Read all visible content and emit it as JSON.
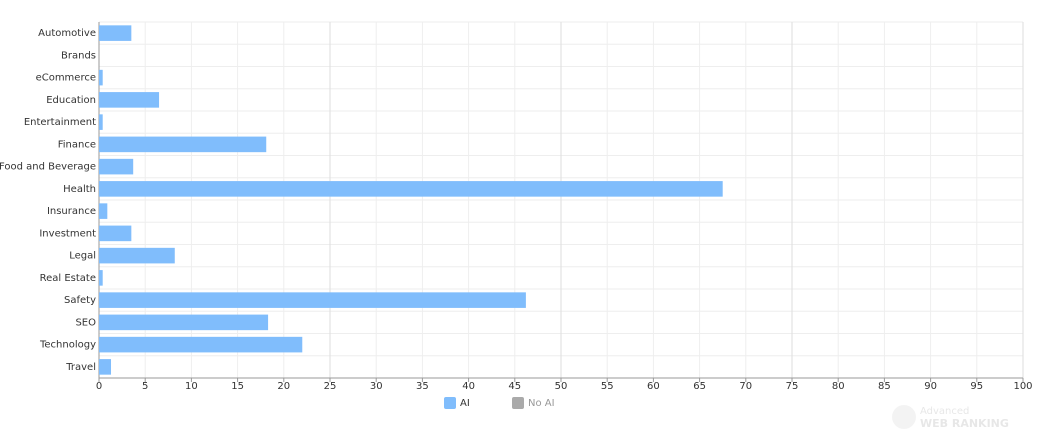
{
  "chart_data": {
    "type": "bar",
    "orientation": "horizontal",
    "categories": [
      "Automotive",
      "Brands",
      "eCommerce",
      "Education",
      "Entertainment",
      "Finance",
      "Food and Beverage",
      "Health",
      "Insurance",
      "Investment",
      "Legal",
      "Real Estate",
      "Safety",
      "SEO",
      "Technology",
      "Travel"
    ],
    "series": [
      {
        "name": "AI",
        "color": "#80bdfc",
        "values": [
          3.5,
          0,
          0.4,
          6.5,
          0.4,
          18.1,
          3.7,
          67.5,
          0.9,
          3.5,
          8.2,
          0.4,
          46.2,
          18.3,
          22,
          1.3
        ]
      },
      {
        "name": "No AI",
        "color": "#aaaaaa",
        "hidden": true,
        "values": [
          null,
          null,
          null,
          null,
          null,
          null,
          null,
          null,
          null,
          null,
          null,
          null,
          null,
          null,
          null,
          null
        ]
      }
    ],
    "xlim": [
      0,
      100
    ],
    "xticks": [
      0,
      5,
      10,
      15,
      20,
      25,
      30,
      35,
      40,
      45,
      50,
      55,
      60,
      65,
      70,
      75,
      80,
      85,
      90,
      95,
      100
    ],
    "grid": true,
    "legend": "bottom",
    "watermark": {
      "line1": "Advanced",
      "line2": "WEB RANKING"
    }
  }
}
